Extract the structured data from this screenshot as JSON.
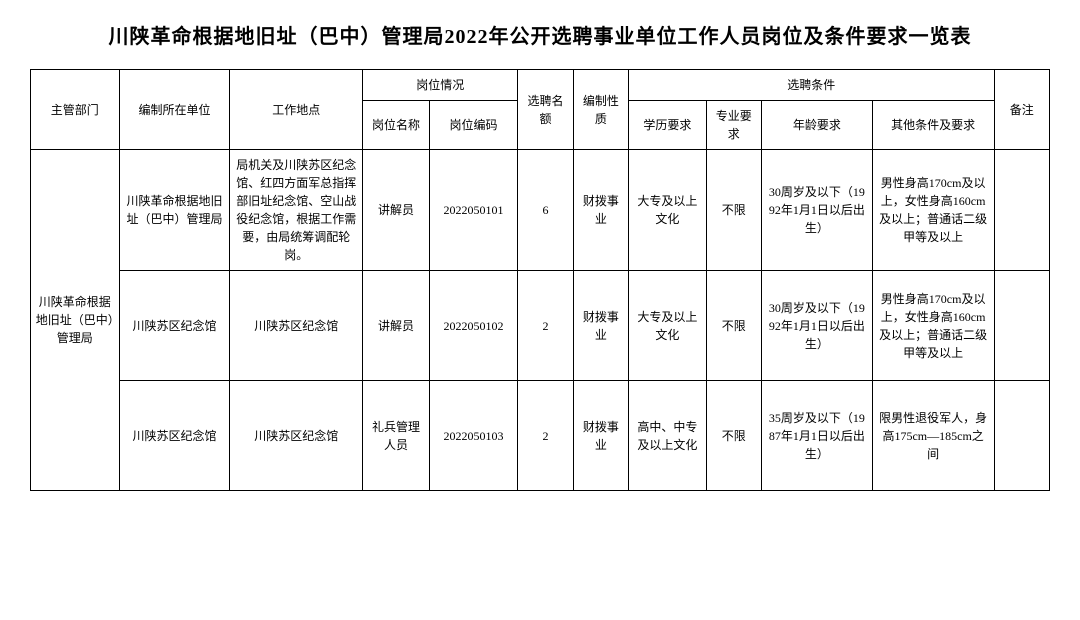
{
  "title": "川陕革命根据地旧址（巴中）管理局2022年公开选聘事业单位工作人员岗位及条件要求一览表",
  "headers": {
    "dept": "主管部门",
    "unit": "编制所在单位",
    "location": "工作地点",
    "position_group": "岗位情况",
    "position_name": "岗位名称",
    "position_code": "岗位编码",
    "quota": "选聘名额",
    "nature": "编制性质",
    "cond_group": "选聘条件",
    "edu": "学历要求",
    "major": "专业要求",
    "age": "年龄要求",
    "other": "其他条件及要求",
    "remark": "备注"
  },
  "dept_merged": "川陕革命根据地旧址（巴中）管理局",
  "rows": [
    {
      "unit": "川陕革命根据地旧址（巴中）管理局",
      "location": "局机关及川陕苏区纪念馆、红四方面军总指挥部旧址纪念馆、空山战役纪念馆，根据工作需要，由局统筹调配轮岗。",
      "position_name": "讲解员",
      "position_code": "2022050101",
      "quota": "6",
      "nature": "财拨事业",
      "edu": "大专及以上文化",
      "major": "不限",
      "age": "30周岁及以下（1992年1月1日以后出生）",
      "other": "男性身高170cm及以上，女性身高160cm及以上；普通话二级甲等及以上",
      "remark": ""
    },
    {
      "unit": "川陕苏区纪念馆",
      "location": "川陕苏区纪念馆",
      "position_name": "讲解员",
      "position_code": "2022050102",
      "quota": "2",
      "nature": "财拨事业",
      "edu": "大专及以上文化",
      "major": "不限",
      "age": "30周岁及以下（1992年1月1日以后出生）",
      "other": "男性身高170cm及以上，女性身高160cm及以上；普通话二级甲等及以上",
      "remark": ""
    },
    {
      "unit": "川陕苏区纪念馆",
      "location": "川陕苏区纪念馆",
      "position_name": "礼兵管理人员",
      "position_code": "2022050103",
      "quota": "2",
      "nature": "财拨事业",
      "edu": "高中、中专及以上文化",
      "major": "不限",
      "age": "35周岁及以下（1987年1月1日以后出生）",
      "other": "限男性退役军人，身高175cm—185cm之间",
      "remark": ""
    }
  ]
}
